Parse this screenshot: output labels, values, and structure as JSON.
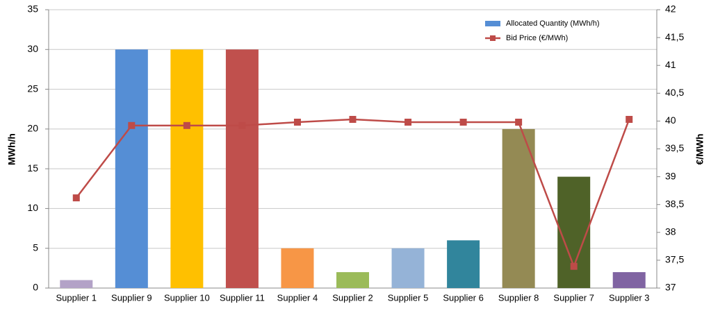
{
  "chart_data": {
    "type": "bar-line",
    "categories": [
      "Supplier 1",
      "Supplier 9",
      "Supplier 10",
      "Supplier 11",
      "Supplier 4",
      "Supplier 2",
      "Supplier 5",
      "Supplier 6",
      "Supplier 8",
      "Supplier 7",
      "Supplier 3"
    ],
    "series": [
      {
        "name": "Allocated Quantity (MWh/h)",
        "type": "bar",
        "color": "#558ed5",
        "colors": [
          "#b3a2c7",
          "#558ed5",
          "#ffc000",
          "#c0504d",
          "#f79646",
          "#9bbb59",
          "#95b3d7",
          "#31859c",
          "#948a54",
          "#4f6228",
          "#8064a2"
        ],
        "values": [
          1,
          30,
          30,
          30,
          5,
          2,
          5,
          6,
          20,
          14,
          2
        ]
      },
      {
        "name": "Bid Price (€/MWh)",
        "type": "line",
        "axis": "y2",
        "color": "#be4b48",
        "values": [
          38.62,
          39.92,
          39.92,
          39.92,
          39.98,
          40.03,
          39.98,
          39.98,
          39.98,
          37.39,
          40.03
        ]
      }
    ],
    "ylabel": "MWh/h",
    "y2label": "€/MWh",
    "ylim": [
      0,
      35
    ],
    "yticks": [
      0,
      5,
      10,
      15,
      20,
      25,
      30,
      35
    ],
    "y2lim": [
      37,
      42
    ],
    "y2ticks": [
      37,
      {
        "value": 37.5,
        "label": "37,5"
      },
      38,
      {
        "value": 38.5,
        "label": "38,5"
      },
      39,
      {
        "value": 39.5,
        "label": "39,5"
      },
      40,
      {
        "value": 40.5,
        "label": "40,5"
      },
      41,
      {
        "value": 41.5,
        "label": "41,5"
      },
      42
    ],
    "grid": true,
    "legend": "top-right"
  }
}
